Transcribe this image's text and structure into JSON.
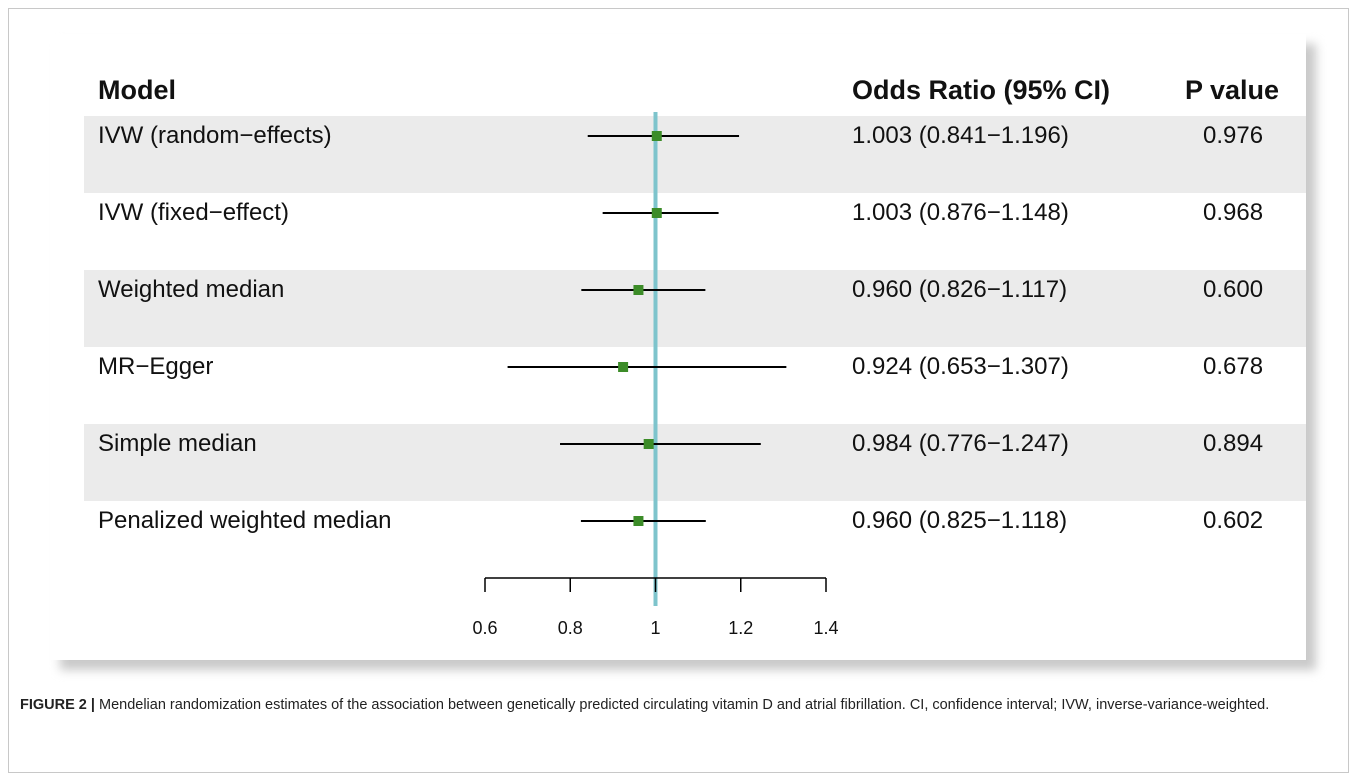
{
  "chart_data": {
    "type": "forest",
    "columns": {
      "model": "Model",
      "estimate": "Odds Ratio (95% CI)",
      "p": "P value"
    },
    "rows": [
      {
        "model": "IVW (random−effects)",
        "or": 1.003,
        "lo": 0.841,
        "hi": 1.196,
        "ci_text": "1.003 (0.841−1.196)",
        "p": "0.976"
      },
      {
        "model": "IVW (fixed−effect)",
        "or": 1.003,
        "lo": 0.876,
        "hi": 1.148,
        "ci_text": "1.003 (0.876−1.148)",
        "p": "0.968"
      },
      {
        "model": "Weighted median",
        "or": 0.96,
        "lo": 0.826,
        "hi": 1.117,
        "ci_text": "0.960 (0.826−1.117)",
        "p": "0.600"
      },
      {
        "model": "MR−Egger",
        "or": 0.924,
        "lo": 0.653,
        "hi": 1.307,
        "ci_text": "0.924 (0.653−1.307)",
        "p": "0.678"
      },
      {
        "model": "Simple median",
        "or": 0.984,
        "lo": 0.776,
        "hi": 1.247,
        "ci_text": "0.984 (0.776−1.247)",
        "p": "0.894"
      },
      {
        "model": "Penalized weighted median",
        "or": 0.96,
        "lo": 0.825,
        "hi": 1.118,
        "ci_text": "0.960 (0.825−1.118)",
        "p": "0.602"
      }
    ],
    "xticks": [
      "0.6",
      "0.8",
      "1",
      "1.2",
      "1.4"
    ],
    "xlim": [
      0.6,
      1.4
    ],
    "reference_line": 1,
    "colors": {
      "point": "#3c8c28",
      "ref_line": "#7ec4cc",
      "stripe": "#ebebeb"
    }
  },
  "caption": {
    "label": "FIGURE 2 |",
    "text": " Mendelian randomization estimates of the association between genetically predicted circulating vitamin D and atrial fibrillation. CI, confidence interval; IVW, inverse-variance-weighted."
  }
}
